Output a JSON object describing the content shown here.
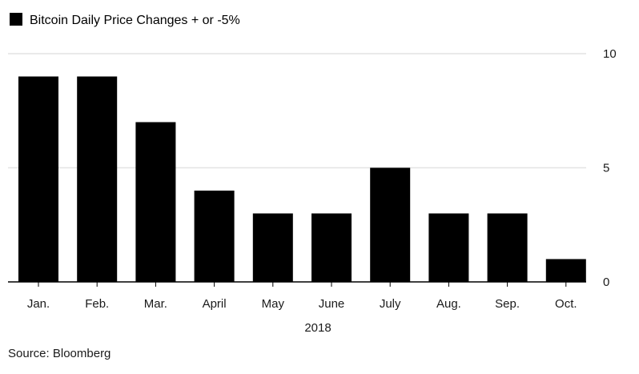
{
  "chart_data": {
    "type": "bar",
    "categories": [
      "Jan.",
      "Feb.",
      "Mar.",
      "April",
      "May",
      "June",
      "July",
      "Aug.",
      "Sep.",
      "Oct."
    ],
    "series": [
      {
        "name": "Bitcoin Daily Price Changes + or -5%",
        "values": [
          9,
          9,
          7,
          4,
          3,
          3,
          5,
          3,
          3,
          1
        ],
        "color": "#000000"
      }
    ],
    "xlabel": "2018",
    "ylabel": "",
    "ylim": [
      0,
      10
    ],
    "yticks": [
      0,
      5,
      10
    ],
    "ytick_labels": [
      "0",
      "5",
      "10"
    ],
    "y_axis_side": "right",
    "grid": true,
    "legend_position": "top-left",
    "source": "Source: Bloomberg"
  }
}
